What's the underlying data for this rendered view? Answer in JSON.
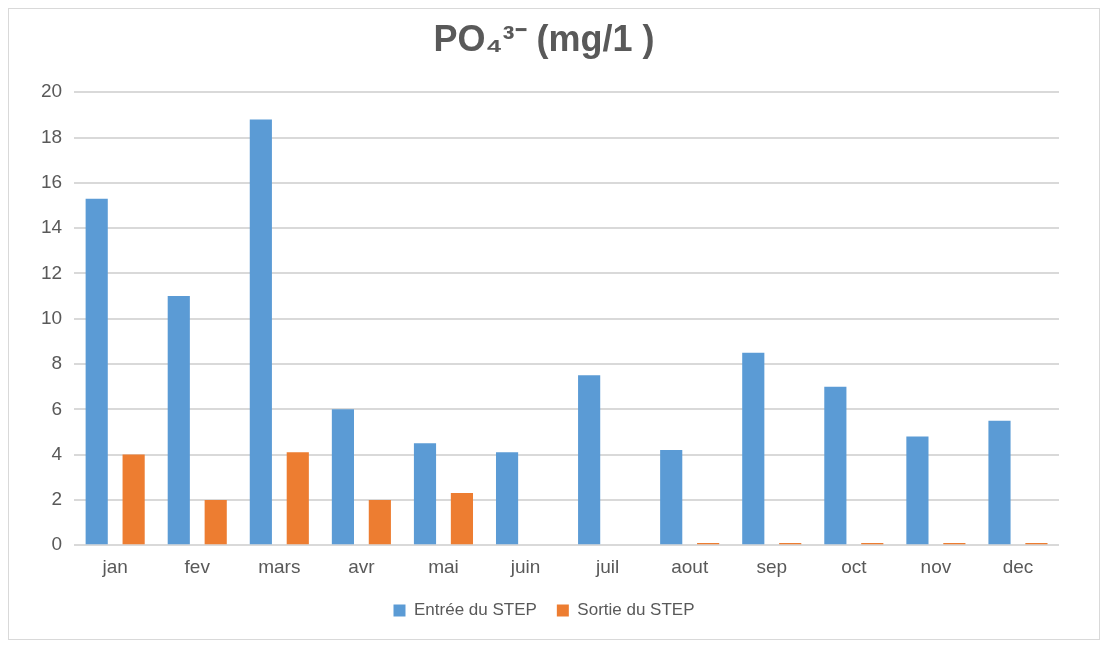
{
  "chart_data": {
    "type": "bar",
    "title": "PO₄³⁻ (mg/1 )",
    "categories": [
      "jan",
      "fev",
      "mars",
      "avr",
      "mai",
      "juin",
      "juil",
      "aout",
      "sep",
      "oct",
      "nov",
      "dec"
    ],
    "series": [
      {
        "name": "Entrée du STEP",
        "color": "#5b9bd5",
        "values": [
          15.3,
          11.0,
          18.8,
          6.0,
          4.5,
          4.1,
          7.5,
          4.2,
          8.5,
          7.0,
          4.8,
          5.5
        ]
      },
      {
        "name": "Sortie du STEP",
        "color": "#ed7d31",
        "values": [
          4.0,
          2.0,
          4.1,
          2.0,
          2.3,
          0,
          0,
          0.1,
          0.1,
          0.1,
          0.1,
          0.1
        ]
      }
    ],
    "ylim": [
      0,
      20
    ],
    "yticks": [
      0,
      2,
      4,
      6,
      8,
      10,
      12,
      14,
      16,
      18,
      20
    ],
    "grid": "y",
    "legend": "bottom"
  }
}
